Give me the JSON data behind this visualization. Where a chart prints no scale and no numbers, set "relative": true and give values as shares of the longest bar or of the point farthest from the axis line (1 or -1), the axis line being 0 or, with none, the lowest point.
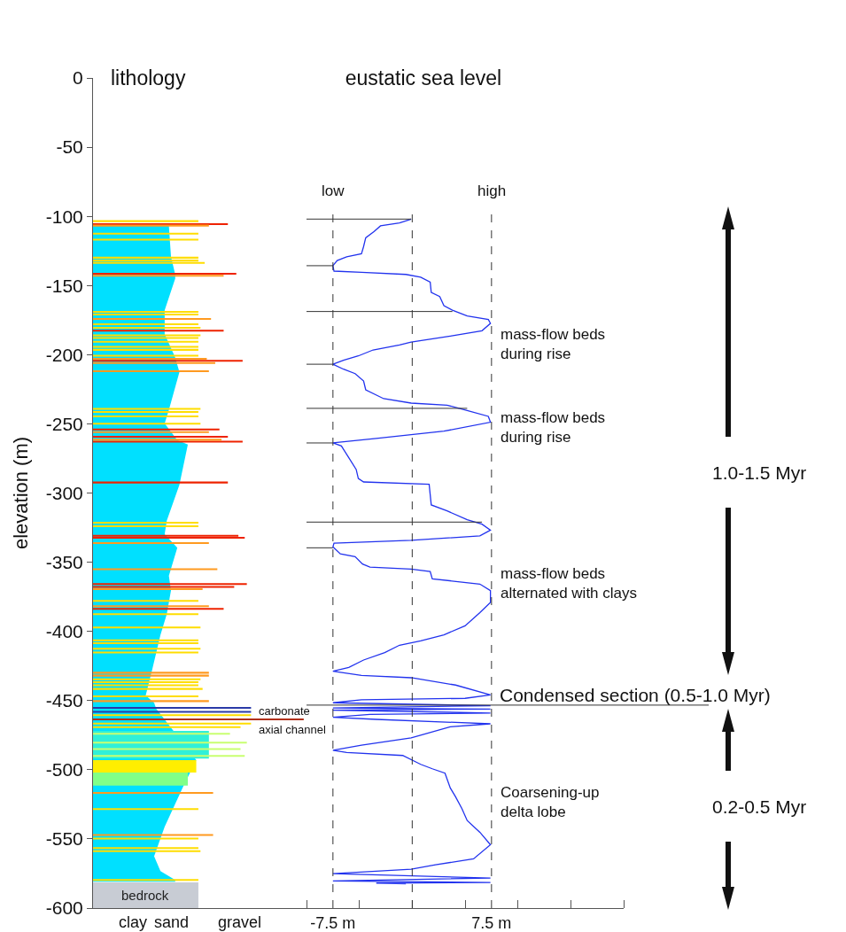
{
  "chart_data": [
    {
      "type": "bar",
      "title": "lithology",
      "ylabel": "elevation (m)",
      "orientation": "horizontal",
      "relative": true,
      "ylim": [
        -600,
        0
      ],
      "yticks": [
        0,
        -50,
        -100,
        -150,
        -200,
        -250,
        -300,
        -350,
        -400,
        -450,
        -500,
        -550,
        -600
      ],
      "series": [
        {
          "type": "area",
          "color": "#00e0ff",
          "x": [
            -107,
            -129,
            -142,
            -145,
            -168,
            -185,
            -202,
            -212.6,
            -240,
            -249.7,
            -261.8,
            -265,
            -294,
            -320,
            -329.8,
            -339.6,
            -359.9,
            -370.5,
            -387.6,
            -402.6,
            -428.2,
            -446.3,
            -451.6,
            -456,
            -493,
            -511.4,
            -541.3,
            -562.6,
            -573.3,
            -579.7,
            -581
          ],
          "values": [
            0.36,
            0.37,
            0.39,
            0.39,
            0.34,
            0.34,
            0.39,
            0.41,
            0.36,
            0.34,
            0.4,
            0.45,
            0.41,
            0.35,
            0.34,
            0.4,
            0.36,
            0.37,
            0.35,
            0.32,
            0.28,
            0.25,
            0.29,
            0.3,
            0.49,
            0.43,
            0.34,
            0.29,
            0.32,
            0.39,
            0.39
          ]
        },
        {
          "type": "area",
          "color": "#30f0d8",
          "x": [
            -472,
            -492
          ],
          "values": [
            0.55,
            0.55
          ]
        },
        {
          "type": "area",
          "color": "#ffee00",
          "x": [
            -493,
            -502
          ],
          "values": [
            0.49,
            0.49
          ]
        },
        {
          "type": "area",
          "color": "#80ff88",
          "x": [
            -502,
            -511.5
          ],
          "values": [
            0.45,
            0.45
          ]
        },
        {
          "color": "#c8ff70",
          "x": [
            -474,
            -480.4,
            -485,
            -490
          ],
          "values": [
            0.65,
            0.73,
            0.7,
            0.72
          ]
        },
        {
          "color": "#ee2200",
          "x": [
            -105.6,
            -141.5,
            -182.7,
            -204.4,
            -254.1,
            -259.4,
            -262.8,
            -292.4,
            -330.9,
            -332.4,
            -365.8,
            -367.9,
            -383.7
          ],
          "values": [
            0.64,
            0.68,
            0.62,
            0.71,
            0.6,
            0.64,
            0.71,
            0.64,
            0.69,
            0.72,
            0.73,
            0.67,
            0.62
          ]
        },
        {
          "color": "#ff9a20",
          "x": [
            -106.7,
            -143,
            -174.2,
            -203,
            -206,
            -212,
            -256,
            -261.5,
            -336.2,
            -355,
            -369.4,
            -381.8,
            -429.9,
            -432,
            -450.4,
            -516.7,
            -547.2
          ],
          "values": [
            0.55,
            0.62,
            0.56,
            0.54,
            0.58,
            0.55,
            0.55,
            0.61,
            0.55,
            0.59,
            0.52,
            0.55,
            0.55,
            0.55,
            0.55,
            0.57,
            0.57
          ]
        },
        {
          "color": "#ffdd00",
          "x": [
            -103.5,
            -112.5,
            -116.8,
            -129.9,
            -132,
            -133.7,
            -169,
            -171,
            -178,
            -180.6,
            -186,
            -188,
            -190.6,
            -194.4,
            -196.5,
            -200.8,
            -239.2,
            -241.4,
            -244.6,
            -249.9,
            -321.4,
            -324,
            -378,
            -387.6,
            -397.2,
            -406.4,
            -408.5,
            -412.6,
            -415.3,
            -434.6,
            -436.7,
            -438.9,
            -441.6,
            -447,
            -460.6,
            -466.6,
            -469.2,
            -528.4,
            -549.8,
            -556.6,
            -558.8,
            -579.7
          ],
          "values": [
            0.5,
            0.5,
            0.5,
            0.5,
            0.5,
            0.53,
            0.5,
            0.5,
            0.5,
            0.51,
            0.51,
            0.5,
            0.5,
            0.5,
            0.5,
            0.5,
            0.51,
            0.5,
            0.5,
            0.51,
            0.5,
            0.5,
            0.5,
            0.5,
            0.51,
            0.5,
            0.5,
            0.51,
            0.5,
            0.51,
            0.5,
            0.5,
            0.52,
            0.5,
            0.75,
            0.75,
            0.7,
            0.5,
            0.5,
            0.5,
            0.51,
            0.5
          ]
        },
        {
          "color": "#b03018",
          "x": [
            -463.6
          ],
          "values": [
            1
          ]
        },
        {
          "color": "#2a3aa8",
          "x": [
            -455.3,
            -458.1
          ],
          "values": [
            0.75,
            0.75
          ]
        },
        {
          "type": "area",
          "name": "bedrock",
          "color": "#c8ccd4",
          "x": [
            -581.5,
            -600
          ],
          "values": [
            0.5,
            0.5
          ]
        }
      ],
      "annotations": [
        "carbonate",
        "axial channel",
        "clay",
        "sand",
        "gravel"
      ]
    },
    {
      "type": "line",
      "title": "eustatic sea level",
      "xlim": [
        -10,
        20
      ],
      "xticks": [
        {
          "value": -10,
          "label": null
        },
        {
          "value": -7.5,
          "label": "-7.5 m"
        },
        {
          "value": -5,
          "label": null
        },
        {
          "value": 0,
          "label": null
        },
        {
          "value": 5,
          "label": null
        },
        {
          "value": 7.5,
          "label": "7.5 m"
        },
        {
          "value": 10,
          "label": null
        },
        {
          "value": 15,
          "label": null
        },
        {
          "value": 20,
          "label": null
        }
      ],
      "ylim": [
        -600,
        0
      ],
      "tick_labels": "x",
      "series": [
        {
          "color": "#2233ee",
          "x": [
            -0.1,
            -1.2,
            -3.0,
            -3.6,
            -4.4,
            -4.6,
            -4.8,
            -6.2,
            -7.1,
            -7.5,
            -7.4,
            -4.8,
            -0.6,
            0.8,
            1.7,
            1.8,
            2.6,
            3.0,
            3.8,
            5.2,
            7.2,
            7.4,
            6.6,
            3.6,
            -0.1,
            -1.2,
            -3.7,
            -5.1,
            -6.5,
            -7.5,
            -6.5,
            -5.4,
            -4.6,
            -4.4,
            -2.7,
            -0.1,
            3.3,
            5.2,
            7.2,
            7.4,
            3.0,
            -3.4,
            -7.5,
            -6.7,
            -6.0,
            -5.3,
            -5.1,
            -4.6,
            1.6,
            1.8,
            3.3,
            5.2,
            6.6,
            7.4,
            6.4,
            -0.1,
            -7.4,
            -7.5,
            -6.8,
            -5.4,
            -4.7,
            -4.0,
            -0.1,
            1.7,
            1.9,
            6.4,
            7.4,
            7.4,
            6.4,
            5.0,
            3.0,
            0.8,
            -1.2,
            -2.6,
            -4.6,
            -6.0,
            -7.5,
            -4.8,
            -0.1,
            4.1,
            7.4,
            5.0,
            -4.8,
            -7.5,
            7.4,
            -7.5,
            7.4,
            -7.5,
            7.4,
            -4.0,
            -7.5,
            -3.4,
            7.4,
            3.6,
            -0.1,
            -4.8,
            -7.5,
            -6.2,
            -0.9,
            0.8,
            1.9,
            3.1,
            3.6,
            4.1,
            4.7,
            5.2,
            6.4,
            7.4,
            5.8,
            2.2,
            -0.1,
            -7.5,
            7.4,
            -7.5,
            7.4,
            -3.4,
            -0.6
          ],
          "values": [
            -102,
            -104.8,
            -106.9,
            -111,
            -115.5,
            -121.8,
            -127,
            -129.3,
            -132,
            -135.7,
            -139.6,
            -140.5,
            -142,
            -144,
            -147.5,
            -155,
            -158,
            -164.6,
            -167.8,
            -172,
            -174.6,
            -177.4,
            -182.7,
            -186.6,
            -190.9,
            -193,
            -196.6,
            -200.9,
            -204,
            -206.9,
            -210.5,
            -213.7,
            -219,
            -225.4,
            -231.8,
            -235,
            -236.5,
            -240.3,
            -244.6,
            -248.8,
            -255.3,
            -260.6,
            -263.8,
            -266,
            -274.5,
            -283,
            -289.5,
            -292,
            -293.7,
            -308.6,
            -312.9,
            -319.3,
            -322.5,
            -326.8,
            -331,
            -334.2,
            -336.3,
            -338.9,
            -344,
            -346,
            -351.3,
            -353.5,
            -355,
            -356.7,
            -362,
            -365.8,
            -370.5,
            -379,
            -386.5,
            -396,
            -402.5,
            -406.8,
            -410,
            -415.3,
            -420.7,
            -426,
            -428.8,
            -431.8,
            -433.5,
            -438.8,
            -445.9,
            -448.4,
            -449.5,
            -451.6,
            -453.7,
            -455.4,
            -456.2,
            -456.9,
            -459,
            -460,
            -462.1,
            -463.6,
            -466.8,
            -468.9,
            -477,
            -482.3,
            -485.9,
            -487.6,
            -489.7,
            -496.1,
            -499.3,
            -502.5,
            -513.2,
            -519.6,
            -528.1,
            -536.7,
            -545.2,
            -554.2,
            -564.4,
            -568.7,
            -571.9,
            -575.1,
            -578.3,
            -580.4,
            -581.5,
            -581.9,
            -582.5
          ]
        }
      ],
      "ref_lines": [
        {
          "axis": "x",
          "value": -7.5,
          "label": "low",
          "line_style": "dashed"
        },
        {
          "axis": "x",
          "value": 0,
          "line_style": "dashed"
        },
        {
          "axis": "x",
          "value": 7.5,
          "label": "high",
          "line_style": "dashed"
        },
        {
          "axis": "y",
          "value": -102
        },
        {
          "axis": "y",
          "value": -135.7
        },
        {
          "axis": "y",
          "value": -168.8
        },
        {
          "axis": "y",
          "value": -206.9
        },
        {
          "axis": "y",
          "value": -238.8
        },
        {
          "axis": "y",
          "value": -263.8
        },
        {
          "axis": "y",
          "value": -321
        },
        {
          "axis": "y",
          "value": -339.6
        },
        {
          "axis": "y",
          "value": -453.3,
          "label": "Condensed section (0.5-1.0 Myr)"
        }
      ],
      "annotations": [
        "mass-flow beds\nduring rise",
        "mass-flow beds\nduring rise",
        "mass-flow beds\nalternated with clays",
        "Coarsening-up\ndelta lobe",
        "1.0-1.5 Myr",
        "0.2-0.5 Myr"
      ]
    }
  ]
}
